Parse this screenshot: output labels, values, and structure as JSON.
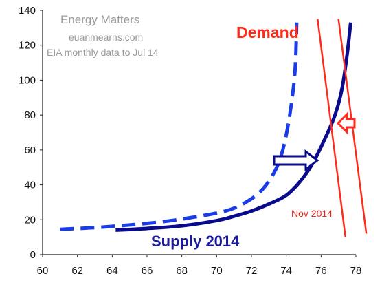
{
  "chart_data": {
    "type": "line",
    "title": "",
    "xlabel": "",
    "ylabel": "",
    "xlim": [
      60,
      78
    ],
    "ylim": [
      0,
      140
    ],
    "x_ticks": [
      "60",
      "62",
      "64",
      "66",
      "68",
      "70",
      "72",
      "74",
      "76",
      "78"
    ],
    "y_ticks": [
      "0",
      "20",
      "40",
      "60",
      "80",
      "100",
      "120",
      "140"
    ],
    "grid": false,
    "watermark": {
      "line1": "Energy Matters",
      "line2": "euanmearns.com",
      "line3": "EIA monthly data to Jul 14"
    },
    "series": [
      {
        "name": "Supply 2014",
        "style": "solid",
        "color": "#0a0a8c",
        "points": [
          [
            64.2,
            14
          ],
          [
            66,
            15
          ],
          [
            68,
            16.5
          ],
          [
            70,
            19.5
          ],
          [
            71,
            22
          ],
          [
            72,
            25
          ],
          [
            73,
            29
          ],
          [
            74,
            34
          ],
          [
            74.8,
            42
          ],
          [
            75.5,
            52
          ],
          [
            76.2,
            66
          ],
          [
            76.8,
            80
          ],
          [
            77.2,
            95
          ],
          [
            77.5,
            115
          ],
          [
            77.7,
            133
          ]
        ]
      },
      {
        "name": "",
        "style": "dashed",
        "color": "#1a3ce8",
        "points": [
          [
            61,
            14.5
          ],
          [
            63,
            15.5
          ],
          [
            65,
            17
          ],
          [
            67,
            19
          ],
          [
            69,
            22
          ],
          [
            70.5,
            25
          ],
          [
            71.5,
            29
          ],
          [
            72.5,
            36
          ],
          [
            73.3,
            47
          ],
          [
            73.8,
            60
          ],
          [
            74.2,
            80
          ],
          [
            74.5,
            105
          ],
          [
            74.6,
            133
          ]
        ]
      },
      {
        "name": "Demand",
        "style": "solid",
        "color": "#ff2a1a",
        "points": [
          [
            75.8,
            135
          ],
          [
            77.4,
            10
          ]
        ]
      },
      {
        "name": "",
        "style": "solid",
        "color": "#ff2a1a",
        "points": [
          [
            77,
            135
          ],
          [
            78.6,
            12
          ]
        ]
      }
    ],
    "annotations": {
      "demand_label": "Demand",
      "supply_label": "Supply 2014",
      "nov_label": "Nov 2014"
    },
    "colors": {
      "supply": "#0a0a8c",
      "dashed": "#1a3ce8",
      "demand": "#ff2a1a",
      "arrow_blue": "#0a0a8c",
      "arrow_red": "#ff2a1a"
    }
  }
}
